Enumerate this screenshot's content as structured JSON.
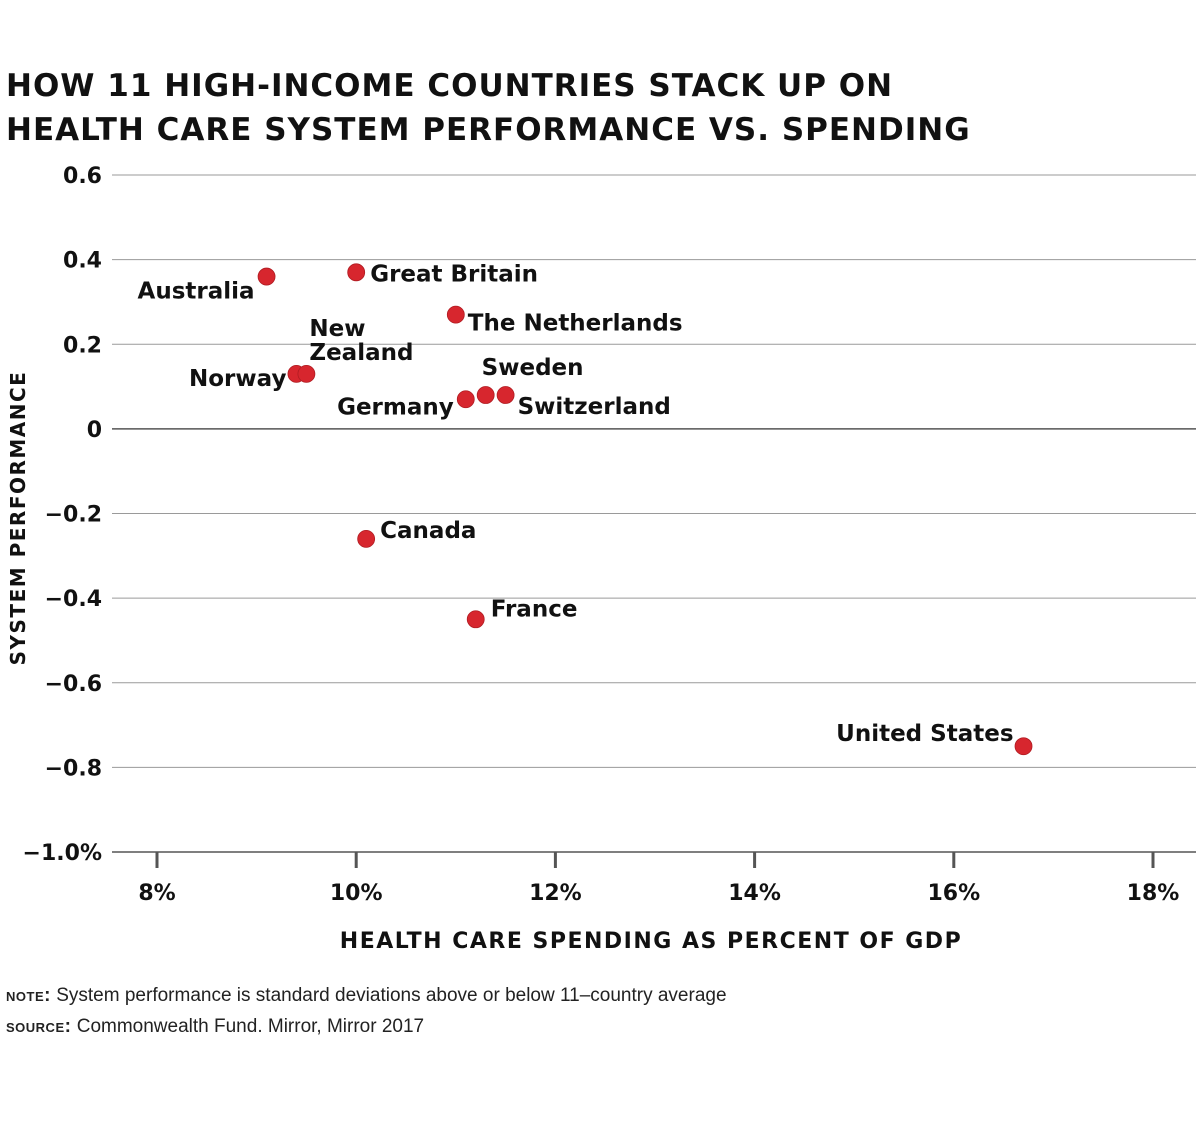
{
  "chart_data": {
    "type": "scatter",
    "title": [
      "HOW 11 HIGH-INCOME COUNTRIES STACK UP ON",
      "HEALTH CARE SYSTEM PERFORMANCE VS. SPENDING"
    ],
    "xlabel": "HEALTH CARE SPENDING AS PERCENT OF GDP",
    "ylabel": "SYSTEM PERFORMANCE",
    "xlim": [
      8,
      18
    ],
    "ylim": [
      -1.0,
      0.6
    ],
    "x_ticks": [
      8,
      10,
      12,
      14,
      16,
      18
    ],
    "x_tick_labels": [
      "8%",
      "10%",
      "12%",
      "14%",
      "16%",
      "18%"
    ],
    "y_ticks": [
      0.6,
      0.4,
      0.2,
      0,
      -0.2,
      -0.4,
      -0.6,
      -0.8,
      -1.0
    ],
    "y_tick_labels": [
      "0.6",
      "0.4",
      "0.2",
      "0",
      "−0.2",
      "−0.4",
      "−0.6",
      "−0.8",
      "−1.0%"
    ],
    "grid": "horizontal",
    "point_color": "#d7262e",
    "points": [
      {
        "label": "Australia",
        "x": 9.1,
        "y": 0.36
      },
      {
        "label": "Great Britain",
        "x": 10.0,
        "y": 0.37
      },
      {
        "label": "The Netherlands",
        "x": 11.0,
        "y": 0.27
      },
      {
        "label": "Norway",
        "x": 9.4,
        "y": 0.13
      },
      {
        "label": [
          "New",
          "Zealand"
        ],
        "x": 9.5,
        "y": 0.13
      },
      {
        "label": "Sweden",
        "x": 11.3,
        "y": 0.08
      },
      {
        "label": "Germany",
        "x": 11.1,
        "y": 0.07
      },
      {
        "label": "Switzerland",
        "x": 11.5,
        "y": 0.08
      },
      {
        "label": "Canada",
        "x": 10.1,
        "y": -0.26
      },
      {
        "label": "France",
        "x": 11.2,
        "y": -0.45
      },
      {
        "label": "United States",
        "x": 16.7,
        "y": -0.75
      }
    ]
  },
  "notes": {
    "note_key": "note:",
    "note_text": " System performance is standard deviations above or below 11–country average",
    "source_key": "source:",
    "source_text": " Commonwealth Fund. Mirror, Mirror 2017"
  }
}
